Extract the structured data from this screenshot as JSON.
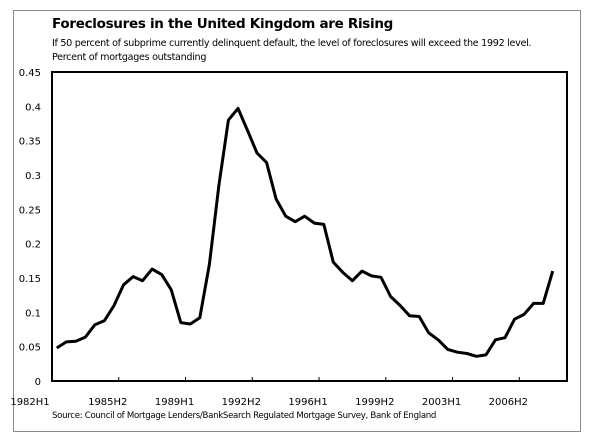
{
  "chart_data": {
    "type": "line",
    "title": "Foreclosures in the United Kingdom are Rising",
    "subtitle": "If 50 percent of subprime currently delinquent default, the level of foreclosures will exceed the 1992 level.",
    "ylabel": "Percent of mortgages outstanding",
    "xlabel": "",
    "source": "Source: Council of Mortgage Lenders/BankSearch Regulated Mortgage Survey, Bank of England",
    "ylim": [
      0,
      0.45
    ],
    "yticks": [
      "0",
      "0.05",
      "0.1",
      "0.15",
      "0.2",
      "0.25",
      "0.3",
      "0.35",
      "0.4",
      "0.45"
    ],
    "xtick_labels": [
      "1982H1",
      "1985H2",
      "1989H1",
      "1992H2",
      "1996H1",
      "1999H2",
      "2003H1",
      "2006H2"
    ],
    "xtick_interval": 7,
    "grid": false,
    "line_color": "#000000",
    "x": [
      "1982H1",
      "1982H2",
      "1983H1",
      "1983H2",
      "1984H1",
      "1984H2",
      "1985H1",
      "1985H2",
      "1986H1",
      "1986H2",
      "1987H1",
      "1987H2",
      "1988H1",
      "1988H2",
      "1989H1",
      "1989H2",
      "1990H1",
      "1990H2",
      "1991H1",
      "1991H2",
      "1992H1",
      "1992H2",
      "1993H1",
      "1993H2",
      "1994H1",
      "1994H2",
      "1995H1",
      "1995H2",
      "1996H1",
      "1996H2",
      "1997H1",
      "1997H2",
      "1998H1",
      "1998H2",
      "1999H1",
      "1999H2",
      "2000H1",
      "2000H2",
      "2001H1",
      "2001H2",
      "2002H1",
      "2002H2",
      "2003H1",
      "2003H2",
      "2004H1",
      "2004H2",
      "2005H1",
      "2005H2",
      "2006H1",
      "2006H2",
      "2007H1",
      "2007H2",
      "2008H1"
    ],
    "values": [
      0.048,
      0.057,
      0.058,
      0.064,
      0.082,
      0.088,
      0.11,
      0.14,
      0.152,
      0.146,
      0.163,
      0.155,
      0.133,
      0.085,
      0.083,
      0.092,
      0.17,
      0.285,
      0.38,
      0.397,
      0.365,
      0.332,
      0.318,
      0.265,
      0.24,
      0.232,
      0.24,
      0.23,
      0.228,
      0.173,
      0.158,
      0.146,
      0.16,
      0.153,
      0.151,
      0.123,
      0.11,
      0.095,
      0.094,
      0.07,
      0.06,
      0.046,
      0.042,
      0.04,
      0.036,
      0.038,
      0.06,
      0.063,
      0.09,
      0.097,
      0.113,
      0.113,
      0.16
    ]
  }
}
